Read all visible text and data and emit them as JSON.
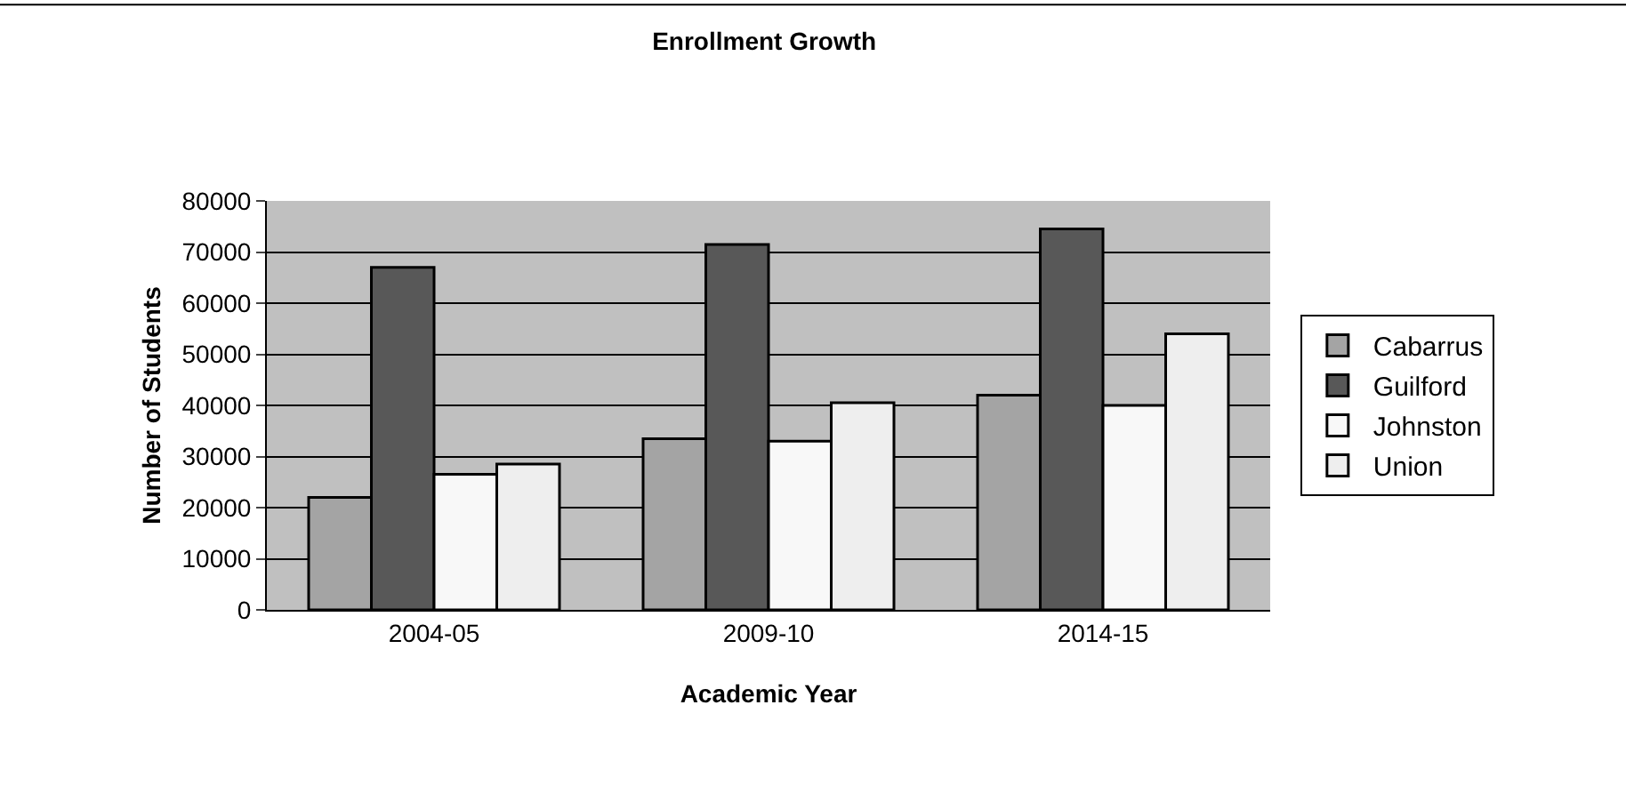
{
  "chart_data": {
    "type": "bar",
    "title": "Enrollment Growth",
    "xlabel": "Academic Year",
    "ylabel": "Number of Students",
    "categories": [
      "2004-05",
      "2009-10",
      "2014-15"
    ],
    "series": [
      {
        "name": "Cabarrus",
        "color": "#a4a4a4",
        "values": [
          22000,
          33500,
          42000
        ]
      },
      {
        "name": "Guilford",
        "color": "#585858",
        "values": [
          67000,
          71500,
          74500
        ]
      },
      {
        "name": "Johnston",
        "color": "#f8f8f8",
        "values": [
          26500,
          33000,
          40000
        ]
      },
      {
        "name": "Union",
        "color": "#eeeeee",
        "values": [
          28500,
          40500,
          54000
        ]
      }
    ],
    "ylim": [
      0,
      80000
    ],
    "yticks": [
      0,
      10000,
      20000,
      30000,
      40000,
      50000,
      60000,
      70000,
      80000
    ],
    "grid": "y",
    "legend": "right"
  }
}
